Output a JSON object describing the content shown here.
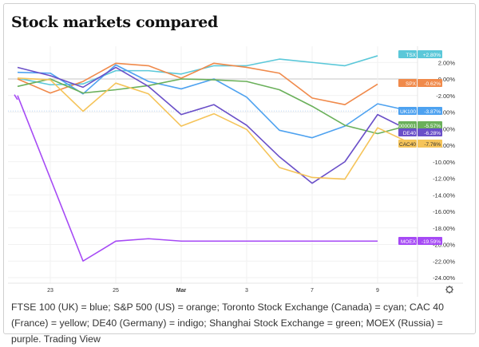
{
  "title": "Stock markets compared",
  "caption": "FTSE 100 (UK) = blue; S&P 500 (US) = orange; Toronto Stock Exchange (Canada) = cyan; CAC 40 (France) = yellow; DE40 (Germany) = indigo; Shanghai Stock Exchange = green; MOEX (Russia) = purple. Trading View",
  "settings_icon": "gear-icon",
  "chart_data": {
    "type": "line",
    "title": "Stock markets compared",
    "x": [
      "Feb 22",
      "Feb 23",
      "Feb 24",
      "Feb 25",
      "Feb 28",
      "Mar 1",
      "Mar 2",
      "Mar 3",
      "Mar 4",
      "Mar 7",
      "Mar 8",
      "Mar 9",
      "Mar 10"
    ],
    "x_tick_labels": [
      {
        "at": "Feb 23",
        "label": "23"
      },
      {
        "at": "Feb 25",
        "label": "25"
      },
      {
        "at": "Mar 1",
        "label": "Mar"
      },
      {
        "at": "Mar 3",
        "label": "3"
      },
      {
        "at": "Mar 7",
        "label": "7"
      },
      {
        "at": "Mar 9",
        "label": "9"
      }
    ],
    "y_ticks": [
      "2.00%",
      "0.00%",
      "-2.00%",
      "-4.00%",
      "-6.00%",
      "-8.00%",
      "-10.00%",
      "-12.00%",
      "-14.00%",
      "-16.00%",
      "-18.00%",
      "-20.00%",
      "-22.00%",
      "-24.00%"
    ],
    "ylim": [
      -24.8,
      3.8
    ],
    "y_unit": "%",
    "grid": true,
    "series": [
      {
        "name": "TSX",
        "last_label": "+2.80%",
        "color": "#5bc8d9",
        "values": [
          0.1,
          -0.7,
          -0.6,
          1.0,
          1.0,
          0.6,
          1.6,
          1.6,
          2.4,
          2.0,
          1.6,
          2.8,
          null
        ]
      },
      {
        "name": "SPX",
        "last_label": "-0.62%",
        "color": "#f08a4b",
        "values": [
          0.0,
          -1.7,
          -0.3,
          1.9,
          1.6,
          0.1,
          1.9,
          1.4,
          0.7,
          -2.3,
          -3.1,
          -0.62,
          null
        ]
      },
      {
        "name": "UK100",
        "last_label": "-3.87%",
        "color": "#4ea2f0",
        "values": [
          0.8,
          0.7,
          -1.8,
          1.7,
          -0.3,
          -1.2,
          0.0,
          -2.2,
          -6.2,
          -7.1,
          -5.7,
          -3.0,
          -3.87
        ]
      },
      {
        "name": "000001",
        "last_label": "-5.57%",
        "color": "#6ab05a",
        "values": [
          -0.9,
          0.0,
          -1.7,
          -1.3,
          -0.8,
          0.0,
          -0.1,
          -0.3,
          -1.3,
          -3.3,
          -5.6,
          -6.6,
          -5.57
        ]
      },
      {
        "name": "DE40",
        "last_label": "-6.28%",
        "color": "#6a4fc8",
        "values": [
          1.4,
          0.4,
          -1.0,
          1.4,
          -0.9,
          -4.3,
          -3.1,
          -5.6,
          -9.4,
          -12.6,
          -10.0,
          -4.3,
          -6.28
        ]
      },
      {
        "name": "CAC40",
        "last_label": "-7.76%",
        "color": "#f5c45a",
        "values": [
          0.1,
          -0.1,
          -3.9,
          -0.5,
          -1.8,
          -5.7,
          -4.2,
          -6.1,
          -10.7,
          -11.9,
          -12.1,
          -5.9,
          -7.76
        ]
      },
      {
        "name": "MOEX",
        "last_label": "-19.59%",
        "color": "#a64af5",
        "values": [
          -2.0,
          -12.0,
          -22.0,
          -19.6,
          -19.3,
          -19.59,
          -19.59,
          -19.59,
          -19.59,
          -19.59,
          -19.59,
          -19.59,
          null
        ]
      }
    ]
  }
}
